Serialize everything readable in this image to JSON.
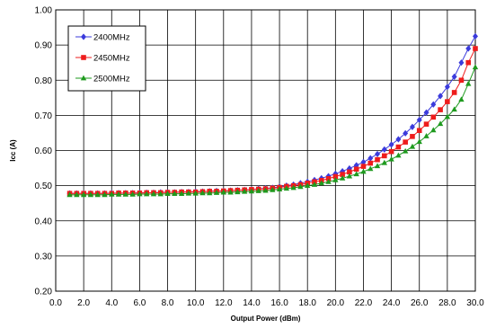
{
  "chart_data": {
    "type": "line",
    "title": "",
    "xlabel": "Output Power (dBm)",
    "ylabel": "Icc (A)",
    "xlim": [
      0,
      30
    ],
    "ylim": [
      0.2,
      1.0
    ],
    "x_ticks": [
      "0.0",
      "2.0",
      "4.0",
      "6.0",
      "8.0",
      "10.0",
      "12.0",
      "14.0",
      "16.0",
      "18.0",
      "20.0",
      "22.0",
      "24.0",
      "26.0",
      "28.0",
      "30.0"
    ],
    "y_ticks": [
      "0.20",
      "0.30",
      "0.40",
      "0.50",
      "0.60",
      "0.70",
      "0.80",
      "0.90",
      "1.00"
    ],
    "grid": true,
    "legend_position": "top-left",
    "x": [
      1,
      1.5,
      2,
      2.5,
      3,
      3.5,
      4,
      4.5,
      5,
      5.5,
      6,
      6.5,
      7,
      7.5,
      8,
      8.5,
      9,
      9.5,
      10,
      10.5,
      11,
      11.5,
      12,
      12.5,
      13,
      13.5,
      14,
      14.5,
      15,
      15.5,
      16,
      16.5,
      17,
      17.5,
      18,
      18.5,
      19,
      19.5,
      20,
      20.5,
      21,
      21.5,
      22,
      22.5,
      23,
      23.5,
      24,
      24.5,
      25,
      25.5,
      26,
      26.5,
      27,
      27.5,
      28,
      28.5,
      29,
      29.5,
      30
    ],
    "series": [
      {
        "name": "2400MHz",
        "color": "#3b3bdc",
        "marker": "diamond",
        "values": [
          0.478,
          0.478,
          0.478,
          0.478,
          0.478,
          0.478,
          0.479,
          0.479,
          0.479,
          0.479,
          0.48,
          0.48,
          0.48,
          0.481,
          0.481,
          0.481,
          0.482,
          0.482,
          0.483,
          0.483,
          0.484,
          0.485,
          0.485,
          0.486,
          0.487,
          0.488,
          0.489,
          0.491,
          0.492,
          0.494,
          0.497,
          0.5,
          0.503,
          0.507,
          0.511,
          0.516,
          0.521,
          0.527,
          0.534,
          0.541,
          0.549,
          0.558,
          0.567,
          0.578,
          0.59,
          0.603,
          0.617,
          0.632,
          0.649,
          0.667,
          0.687,
          0.708,
          0.731,
          0.755,
          0.781,
          0.81,
          0.85,
          0.89,
          0.925
        ]
      },
      {
        "name": "2450MHz",
        "color": "#ee1c1c",
        "marker": "square",
        "values": [
          0.478,
          0.478,
          0.478,
          0.478,
          0.478,
          0.478,
          0.478,
          0.479,
          0.479,
          0.479,
          0.479,
          0.48,
          0.48,
          0.48,
          0.481,
          0.481,
          0.482,
          0.482,
          0.482,
          0.483,
          0.484,
          0.484,
          0.485,
          0.486,
          0.487,
          0.488,
          0.489,
          0.49,
          0.491,
          0.493,
          0.495,
          0.498,
          0.5,
          0.503,
          0.507,
          0.511,
          0.515,
          0.52,
          0.526,
          0.532,
          0.539,
          0.547,
          0.555,
          0.564,
          0.574,
          0.585,
          0.597,
          0.61,
          0.624,
          0.64,
          0.657,
          0.675,
          0.695,
          0.716,
          0.739,
          0.765,
          0.8,
          0.85,
          0.89
        ]
      },
      {
        "name": "2500MHz",
        "color": "#1e9a1e",
        "marker": "triangle",
        "values": [
          0.474,
          0.474,
          0.474,
          0.474,
          0.474,
          0.474,
          0.475,
          0.475,
          0.475,
          0.475,
          0.476,
          0.476,
          0.476,
          0.476,
          0.477,
          0.477,
          0.477,
          0.478,
          0.478,
          0.479,
          0.479,
          0.48,
          0.481,
          0.481,
          0.482,
          0.483,
          0.484,
          0.485,
          0.486,
          0.488,
          0.49,
          0.492,
          0.494,
          0.497,
          0.5,
          0.503,
          0.507,
          0.511,
          0.516,
          0.521,
          0.527,
          0.533,
          0.54,
          0.548,
          0.556,
          0.565,
          0.575,
          0.586,
          0.598,
          0.611,
          0.625,
          0.641,
          0.658,
          0.676,
          0.696,
          0.717,
          0.745,
          0.79,
          0.837
        ]
      }
    ]
  }
}
